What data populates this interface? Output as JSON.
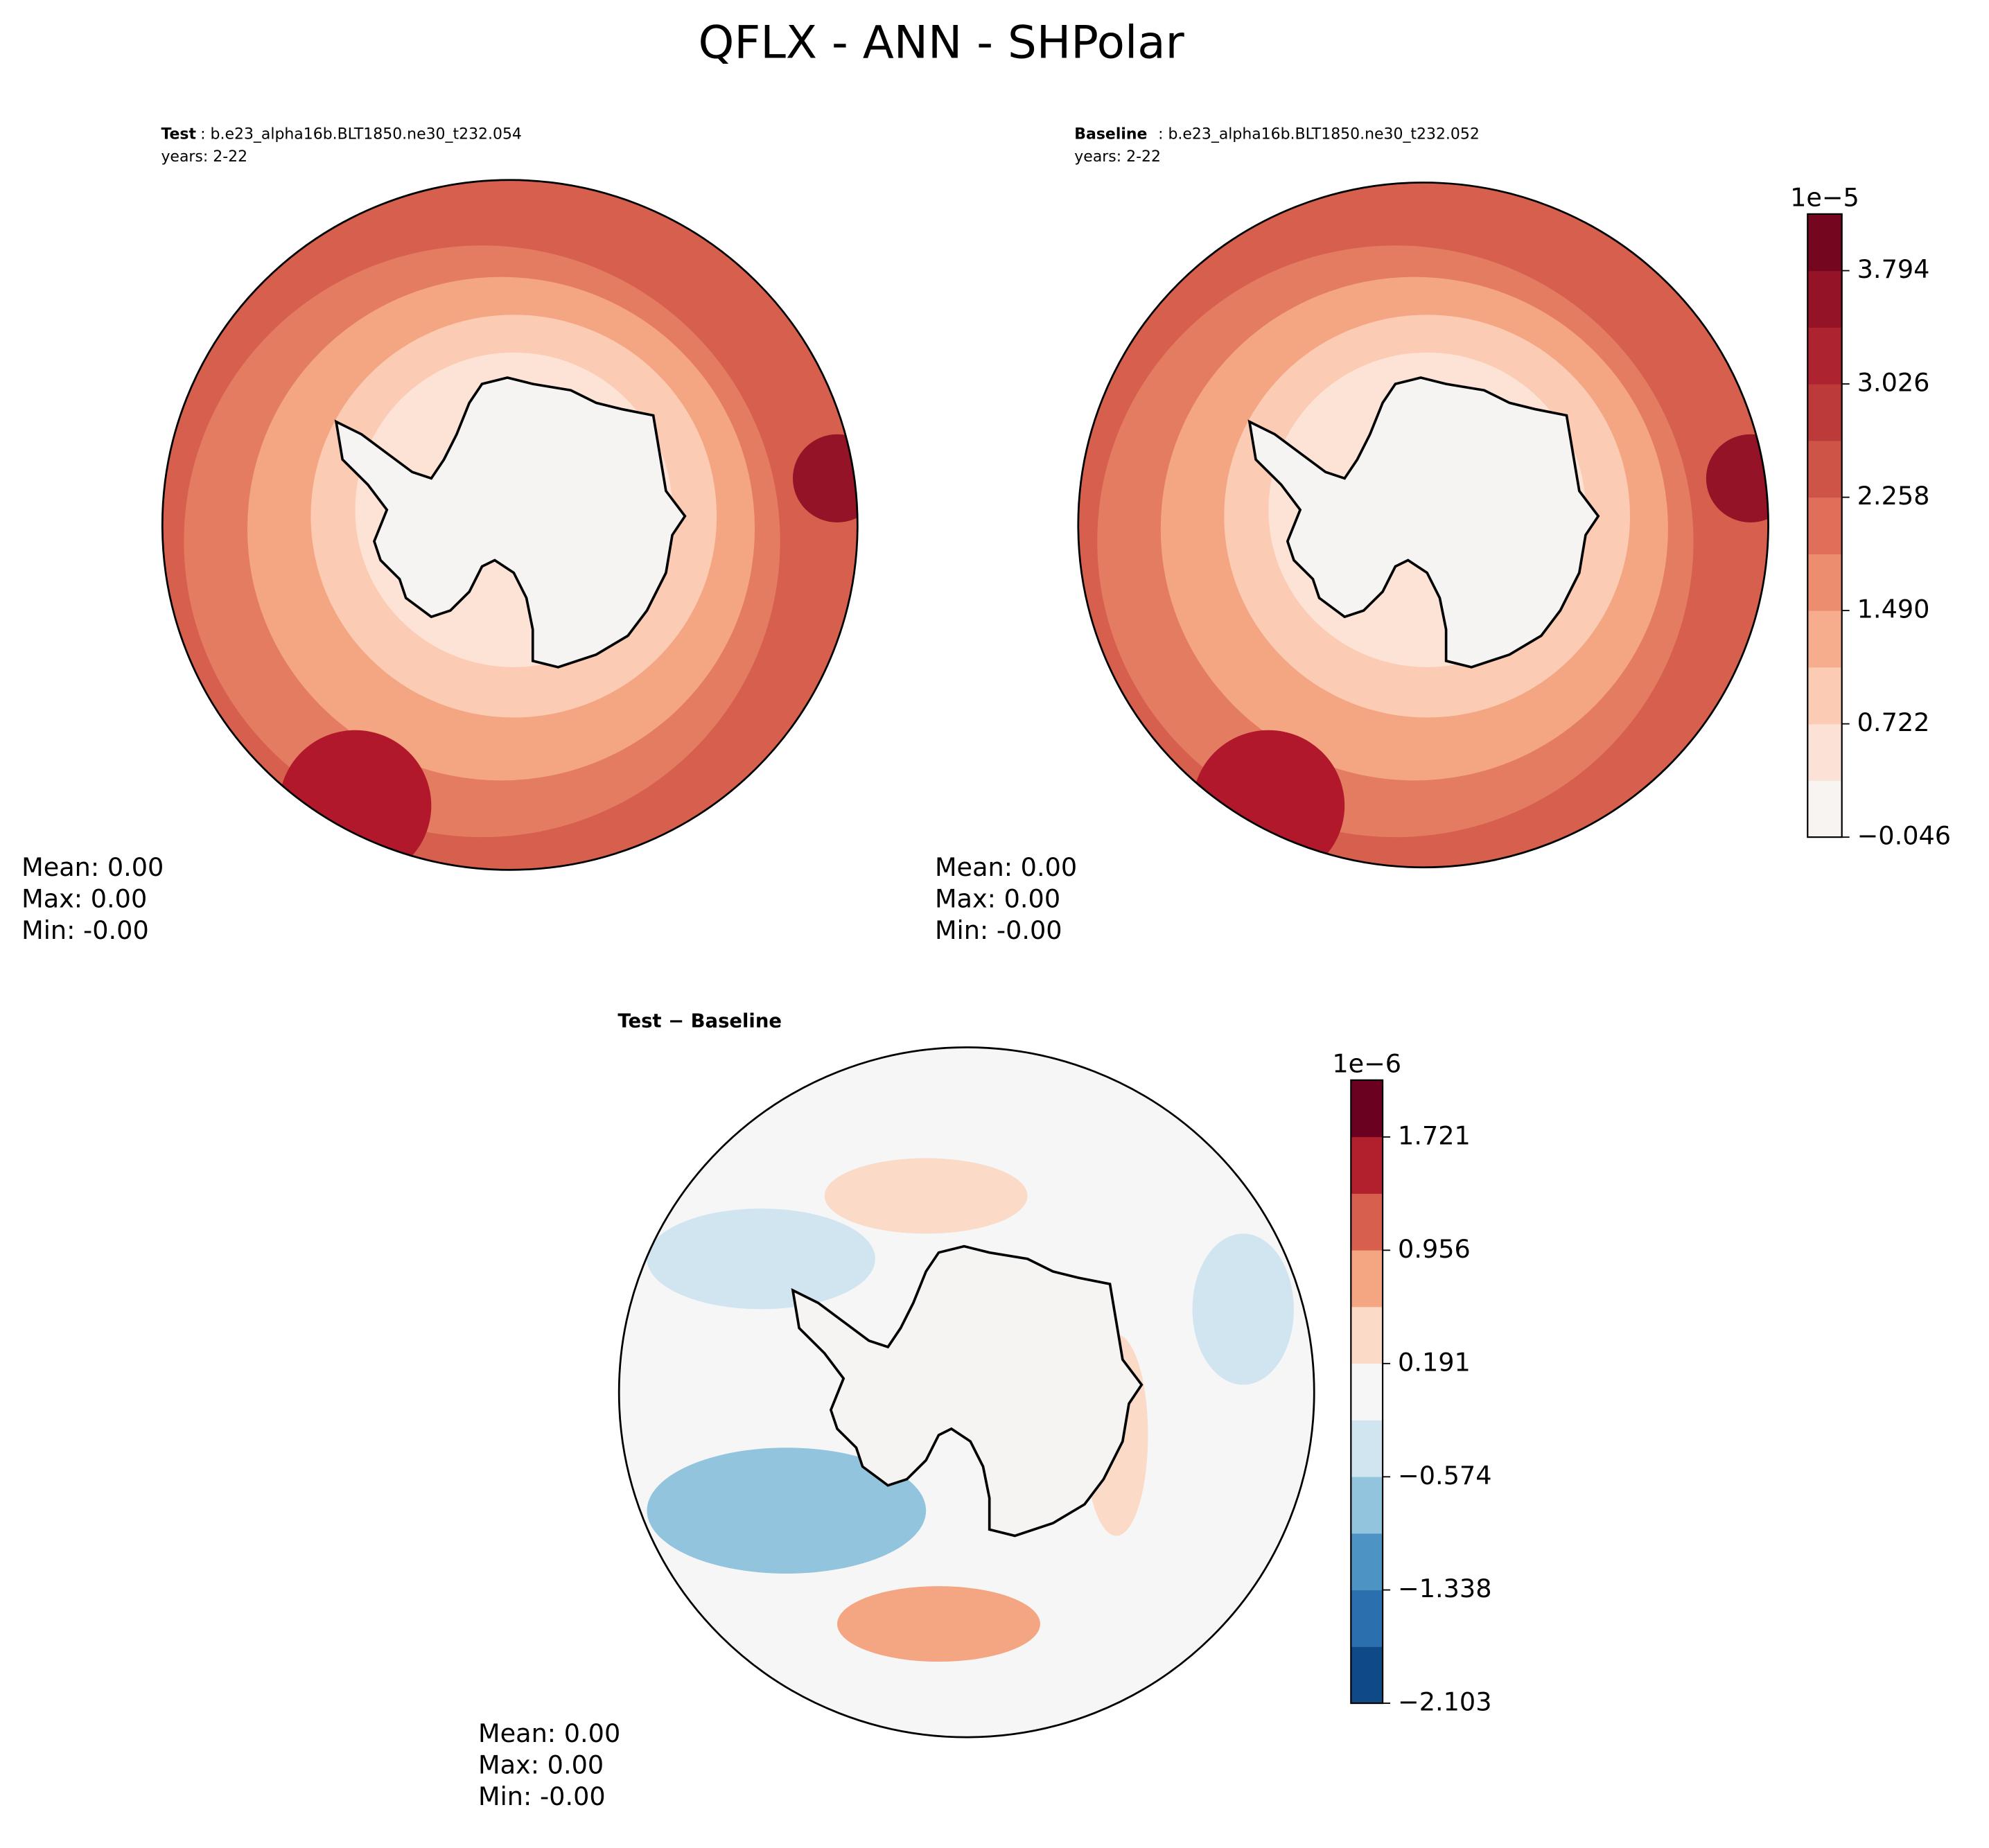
{
  "title": "QFLX - ANN - SHPolar",
  "panels": [
    {
      "label": "Test",
      "case": ": b.e23_alpha16b.BLT1850.ne30_t232.054",
      "years": "years: 2-22",
      "stats": [
        "Mean:  0.00",
        "Max:  0.00",
        "Min: -0.00"
      ]
    },
    {
      "label": "Baseline",
      "case": ": b.e23_alpha16b.BLT1850.ne30_t232.052",
      "years": "years: 2-22",
      "stats": [
        "Mean:  0.00",
        "Max:  0.00",
        "Min: -0.00"
      ]
    },
    {
      "label": "Test − Baseline",
      "stats": [
        "Mean:  0.00",
        "Max:  0.00",
        "Min: -0.00"
      ]
    }
  ],
  "colorbars": [
    {
      "exponent": "1e−5",
      "lim": [
        -0.046,
        4.178
      ],
      "ticks": [
        {
          "value": -0.046,
          "label": "−0.046"
        },
        0.722,
        1.49,
        2.258,
        3.026,
        3.794
      ],
      "tick_labels": [
        "−0.046",
        "0.722",
        "1.490",
        "2.258",
        "3.026",
        "3.794"
      ],
      "colors": [
        "#f7f4f1",
        "#fbe1d6",
        "#fbcbb4",
        "#f6ad8d",
        "#ec8d6e",
        "#df6f58",
        "#cf5448",
        "#bd3a3a",
        "#ad2330",
        "#951326",
        "#75061f"
      ]
    },
    {
      "exponent": "1e−6",
      "lim": [
        -2.103,
        2.105
      ],
      "ticks": [
        {
          "value": -2.103,
          "label": "−2.103"
        },
        {
          "value": -1.338,
          "label": "−1.338"
        },
        {
          "value": -0.574,
          "label": "−0.574"
        },
        0.191,
        0.956,
        1.721
      ],
      "tick_labels": [
        "−2.103",
        "−1.338",
        "−0.574",
        "0.191",
        "0.956",
        "1.721"
      ],
      "colors": [
        "#0f4a86",
        "#2b6fae",
        "#4d93c3",
        "#92c4de",
        "#d1e5f0",
        "#f6f6f6",
        "#fbdbc8",
        "#f4a582",
        "#d6604d",
        "#b3202d",
        "#6b0120"
      ]
    }
  ]
}
